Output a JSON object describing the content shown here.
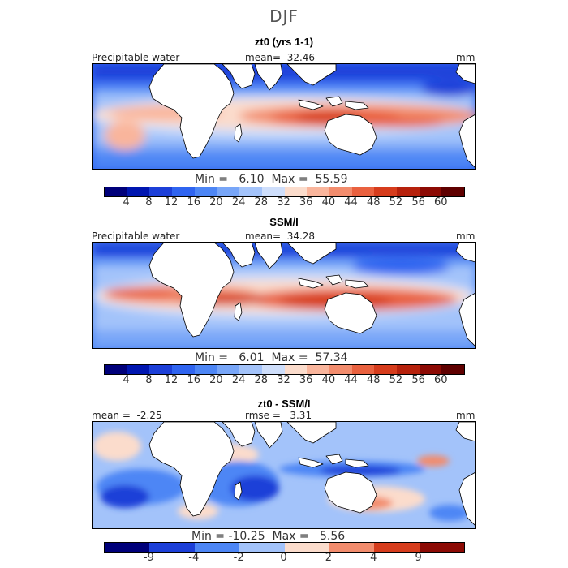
{
  "season": "DJF",
  "panels": [
    {
      "title": "zt0 (yrs 1-1)",
      "left_header": "Precipitable water",
      "center_header": "mean=  32.46",
      "unit": "mm",
      "minmax": "Min =   6.10  Max =  55.59",
      "kind": "absolute",
      "colorbar_ticks": [
        "4",
        "8",
        "12",
        "16",
        "20",
        "24",
        "28",
        "32",
        "36",
        "40",
        "44",
        "48",
        "52",
        "56",
        "60"
      ]
    },
    {
      "title": "SSM/I",
      "left_header": "Precipitable water",
      "center_header": "mean=  34.28",
      "unit": "mm",
      "minmax": "Min =   6.01  Max =  57.34",
      "kind": "absolute",
      "colorbar_ticks": [
        "4",
        "8",
        "12",
        "16",
        "20",
        "24",
        "28",
        "32",
        "36",
        "40",
        "44",
        "48",
        "52",
        "56",
        "60"
      ]
    },
    {
      "title": "zt0 - SSM/I",
      "left_header": "mean =  -2.25",
      "center_header": "rmse =   3.31",
      "unit": "mm",
      "minmax": "Min = -10.25  Max =   5.56",
      "kind": "difference",
      "colorbar_ticks": [
        "-9",
        "-4",
        "-2",
        "0",
        "2",
        "4",
        "9"
      ]
    }
  ],
  "colors": {
    "absolute_scale": [
      "#00007a",
      "#0016b0",
      "#1c3fd8",
      "#2f64f0",
      "#4d86f5",
      "#78a6f8",
      "#a3c3fa",
      "#cedefb",
      "#fbdccc",
      "#f9b59c",
      "#f28c6d",
      "#e9613f",
      "#d63c1c",
      "#b6210c",
      "#8c0a04",
      "#5f0000"
    ],
    "difference_scale": [
      "#00007a",
      "#1c3fd8",
      "#4d86f5",
      "#a3c3fa",
      "#fbdccc",
      "#f28c6d",
      "#d63c1c",
      "#8c0a04"
    ],
    "land": "#ffffff",
    "coast": "#000000"
  }
}
